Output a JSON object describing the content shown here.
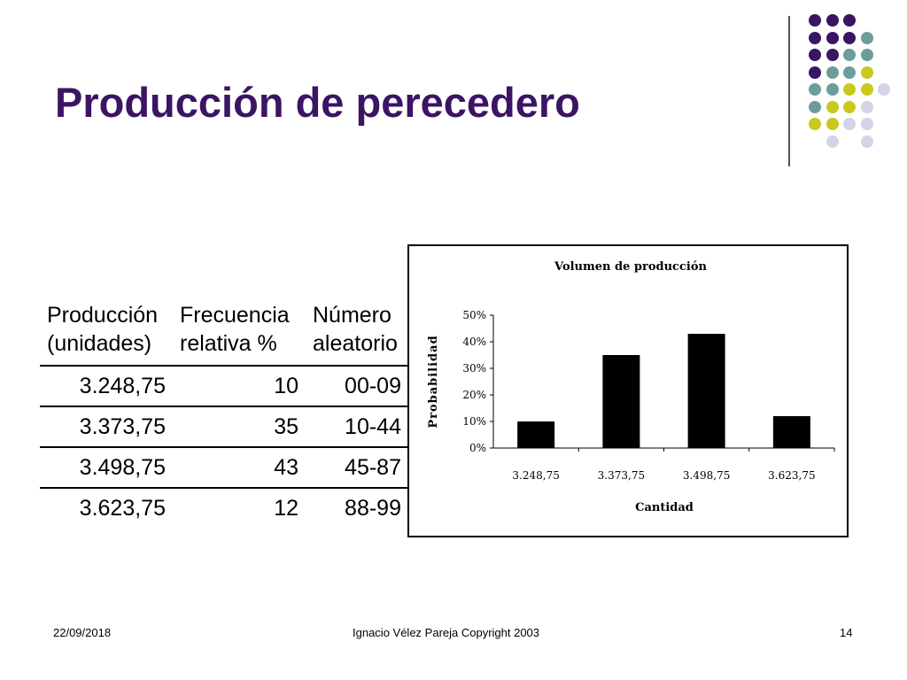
{
  "slide": {
    "title": "Producción de perecedero",
    "palette": {
      "title": "#3b1464",
      "purple": "#3b1464",
      "teal": "#6c9c9c",
      "lime": "#c8c81e",
      "lavender": "#d4d4e8"
    }
  },
  "table": {
    "headers": [
      "Producción (unidades)",
      "Frecuencia relativa %",
      "Número aleatorio"
    ],
    "rows": [
      [
        "3.248,75",
        "10",
        "00-09"
      ],
      [
        "3.373,75",
        "35",
        "10-44"
      ],
      [
        "3.498,75",
        "43",
        "45-87"
      ],
      [
        "3.623,75",
        "12",
        "88-99"
      ]
    ]
  },
  "chart_data": {
    "type": "bar",
    "title": "Volumen de producción",
    "xlabel": "Cantidad",
    "ylabel": "Probabilidad",
    "categories": [
      "3.248,75",
      "3.373,75",
      "3.498,75",
      "3.623,75"
    ],
    "values": [
      0.1,
      0.35,
      0.43,
      0.12
    ],
    "ylim": [
      0,
      0.5
    ],
    "yticks": [
      "0%",
      "10%",
      "20%",
      "30%",
      "40%",
      "50%"
    ],
    "bar_color": "#000000",
    "grid": false,
    "legend": "none"
  },
  "footer": {
    "date": "22/09/2018",
    "center": "Ignacio Vélez Pareja Copyright 2003",
    "page": "14"
  }
}
